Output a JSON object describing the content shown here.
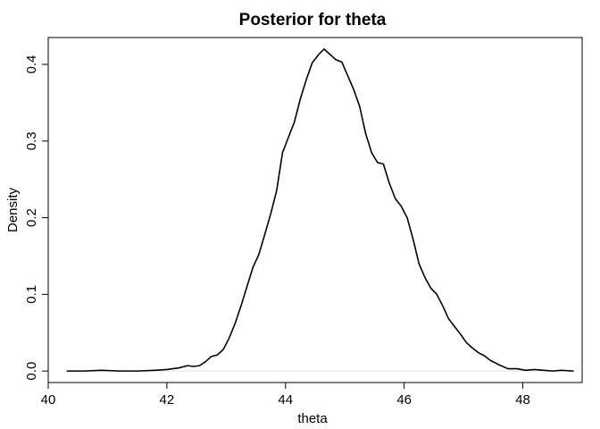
{
  "chart_data": {
    "type": "line",
    "title": "Posterior for theta",
    "xlabel": "theta",
    "ylabel": "Density",
    "xlim": [
      40,
      49
    ],
    "ylim": [
      -0.015,
      0.435
    ],
    "x_ticks": [
      40,
      42,
      44,
      46,
      48
    ],
    "x_tick_labels": [
      "40",
      "42",
      "44",
      "46",
      "48"
    ],
    "y_ticks": [
      0.0,
      0.1,
      0.2,
      0.3,
      0.4
    ],
    "y_tick_labels": [
      "0.0",
      "0.1",
      "0.2",
      "0.3",
      "0.4"
    ],
    "grid": false,
    "legend": false,
    "baseline": 0,
    "line_color": "#000000",
    "baseline_color": "#d9d9d9",
    "series": [
      {
        "x": [
          40.32,
          40.6,
          40.9,
          41.2,
          41.5,
          41.8,
          42.0,
          42.2,
          42.35,
          42.45,
          42.55,
          42.65,
          42.75,
          42.85,
          42.95,
          43.05,
          43.15,
          43.25,
          43.35,
          43.45,
          43.55,
          43.65,
          43.75,
          43.85,
          43.95,
          44.05,
          44.15,
          44.25,
          44.35,
          44.45,
          44.55,
          44.65,
          44.75,
          44.85,
          44.95,
          45.05,
          45.15,
          45.25,
          45.35,
          45.45,
          45.55,
          45.65,
          45.75,
          45.85,
          45.95,
          46.05,
          46.15,
          46.25,
          46.35,
          46.45,
          46.55,
          46.65,
          46.75,
          46.85,
          46.95,
          47.05,
          47.15,
          47.25,
          47.35,
          47.45,
          47.6,
          47.75,
          47.9,
          48.05,
          48.2,
          48.35,
          48.5,
          48.65,
          48.85
        ],
        "y": [
          0.0,
          0.0,
          0.001,
          0.0,
          0.0,
          0.001,
          0.002,
          0.004,
          0.007,
          0.006,
          0.007,
          0.012,
          0.019,
          0.021,
          0.028,
          0.043,
          0.062,
          0.085,
          0.11,
          0.135,
          0.152,
          0.178,
          0.205,
          0.235,
          0.285,
          0.305,
          0.325,
          0.355,
          0.38,
          0.402,
          0.412,
          0.42,
          0.413,
          0.406,
          0.403,
          0.385,
          0.367,
          0.345,
          0.31,
          0.285,
          0.272,
          0.27,
          0.245,
          0.225,
          0.215,
          0.2,
          0.172,
          0.14,
          0.122,
          0.108,
          0.1,
          0.085,
          0.068,
          0.058,
          0.048,
          0.037,
          0.03,
          0.024,
          0.02,
          0.014,
          0.008,
          0.003,
          0.003,
          0.001,
          0.002,
          0.001,
          0.0,
          0.001,
          0.0
        ]
      }
    ]
  }
}
